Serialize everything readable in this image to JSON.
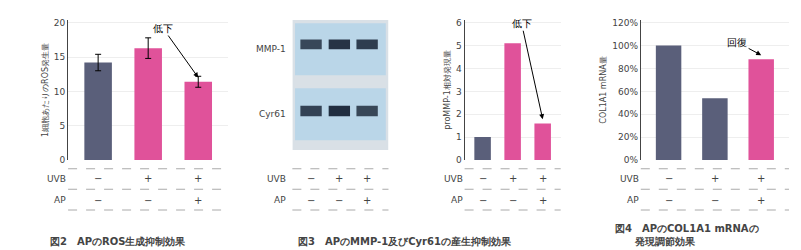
{
  "chart_data": [
    {
      "type": "bar",
      "title": "図2　APのROS生成抑制効果",
      "ylabel": "1細胞あたりのROS発生量",
      "categories": [
        null,
        null,
        null
      ],
      "values": [
        14.2,
        16.3,
        11.4
      ],
      "errors": [
        1.2,
        1.5,
        0.8
      ],
      "colors": [
        "#5a5f7a",
        "#e0529a",
        "#e0529a"
      ],
      "ylim": [
        0,
        20.4
      ],
      "yticks": [
        0,
        5,
        10,
        15,
        20
      ],
      "grid": true,
      "tick_labels": "y",
      "annotation": "低下",
      "table": [
        {
          "label": "UVB",
          "cells": [
            "−",
            "+",
            "+"
          ]
        },
        {
          "label": "AP",
          "cells": [
            "−",
            "−",
            "+"
          ]
        }
      ]
    },
    {
      "type": "blot",
      "row_labels": [
        "MMP-1",
        "Cyr61"
      ],
      "table": [
        {
          "label": "UVB",
          "cells": [
            "−",
            "+",
            "+"
          ]
        },
        {
          "label": "AP",
          "cells": [
            "−",
            "−",
            "+"
          ]
        }
      ]
    },
    {
      "type": "bar",
      "title": "図3　APのMMP-1及びCyr61の産生抑制効果",
      "ylabel": "proMMP-1相対発現量",
      "categories": [
        null,
        null,
        null
      ],
      "values": [
        1.0,
        5.1,
        1.6
      ],
      "colors": [
        "#5a5f7a",
        "#e0529a",
        "#e0529a"
      ],
      "ylim": [
        0,
        6.12
      ],
      "yticks": [
        0,
        1,
        2,
        3,
        4,
        5,
        6
      ],
      "grid": true,
      "tick_labels": "y",
      "annotation": "低下",
      "table": [
        {
          "label": "UVB",
          "cells": [
            "−",
            "+",
            "+"
          ]
        },
        {
          "label": "AP",
          "cells": [
            "−",
            "−",
            "+"
          ]
        }
      ]
    },
    {
      "type": "bar",
      "title": "図4　APのCOL1A1 mRNAの\n　　発現調節効果",
      "ylabel": "COL1A1 mRNA量",
      "categories": [
        null,
        null,
        null
      ],
      "values": [
        100,
        54,
        88
      ],
      "colors": [
        "#5a5f7a",
        "#5a5f7a",
        "#e0529a"
      ],
      "ylim": [
        0,
        122.4
      ],
      "yticks": [
        {
          "value": 0,
          "label": "0%"
        },
        {
          "value": 20,
          "label": "20%"
        },
        {
          "value": 40,
          "label": "40%"
        },
        {
          "value": 60,
          "label": "60%"
        },
        {
          "value": 80,
          "label": "80%"
        },
        {
          "value": 100,
          "label": "100%"
        },
        {
          "value": 120,
          "label": "120%"
        }
      ],
      "grid": true,
      "tick_labels": "y",
      "annotation": "回復",
      "table": [
        {
          "label": "UVB",
          "cells": [
            "−",
            "+",
            "+"
          ]
        },
        {
          "label": "AP",
          "cells": [
            "−",
            "−",
            "+"
          ]
        }
      ]
    }
  ]
}
